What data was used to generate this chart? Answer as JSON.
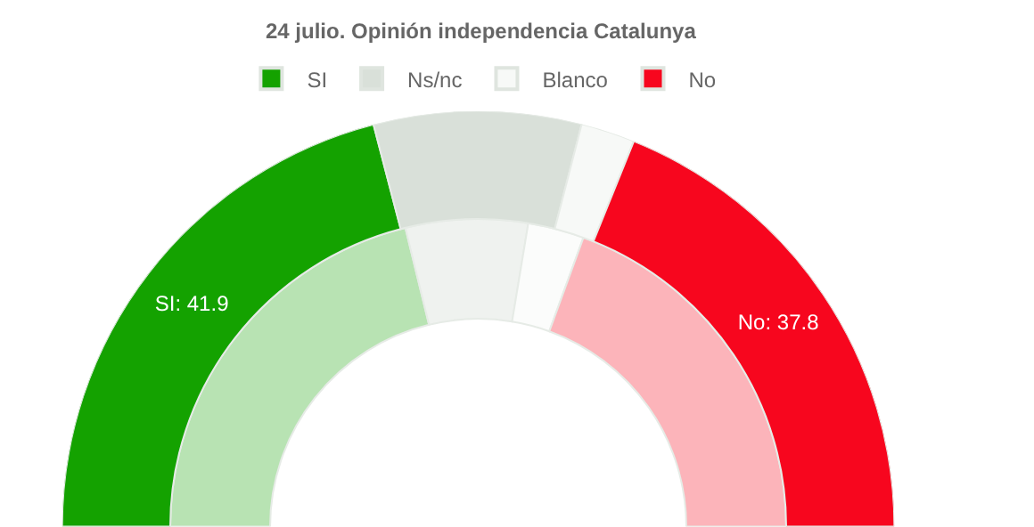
{
  "chart_data": {
    "type": "donut",
    "title": "24 julio. Opinión independencia Catalunya",
    "categories": [
      "SI",
      "Ns/nc",
      "Blanco",
      "No"
    ],
    "series": [
      {
        "values": [
          42.4,
          12.8,
          5.9,
          38.9
        ],
        "colors": [
          "#b8e3b3",
          "#eff2ef",
          "#fbfcfb",
          "#fcb4ba"
        ]
      },
      {
        "values": [
          41.9,
          16.1,
          4.2,
          37.8
        ],
        "colors": [
          "#14a200",
          "#d9e0d9",
          "#f7f9f7",
          "#f7061e"
        ],
        "value_labels": [
          "SI: 41.9",
          null,
          null,
          "No: 37.8"
        ]
      }
    ],
    "legend": "top"
  }
}
